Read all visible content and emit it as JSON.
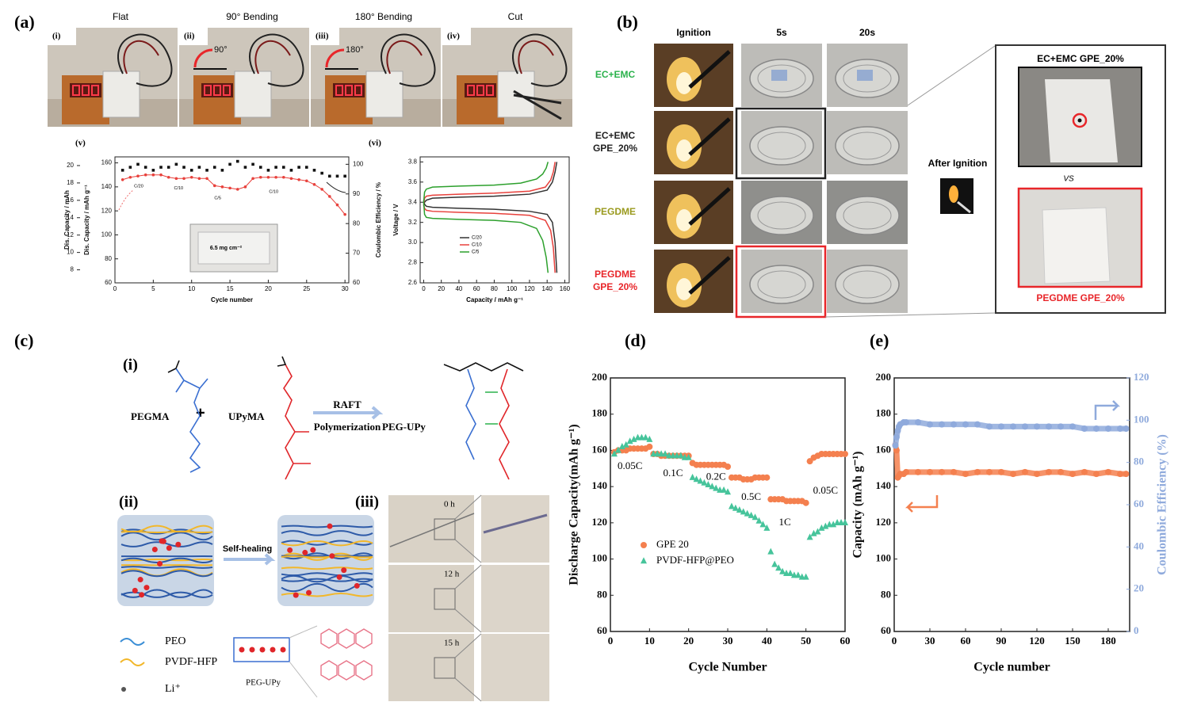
{
  "panel_labels": [
    "(a)",
    "(b)",
    "(c)",
    "(d)",
    "(e)"
  ],
  "panel_a": {
    "photos": [
      {
        "label": "(i)",
        "caption": "Flat"
      },
      {
        "label": "(ii)",
        "caption": "90° Bending",
        "angle": "90°"
      },
      {
        "label": "(iii)",
        "caption": "180° Bending",
        "angle": "180°"
      },
      {
        "label": "(iv)",
        "caption": "Cut"
      }
    ]
  },
  "panel_b": {
    "columns": [
      "Ignition",
      "5s",
      "20s"
    ],
    "rows": [
      {
        "label": [
          "EC+EMC"
        ],
        "color": "#2bb24c"
      },
      {
        "label": [
          "EC+EMC",
          "GPE_20%"
        ],
        "color": "#222222"
      },
      {
        "label": [
          "PEGDME"
        ],
        "color": "#9a9a1e"
      },
      {
        "label": [
          "PEGDME",
          "GPE_20%"
        ],
        "color": "#e8262a"
      }
    ],
    "after_ignition": "After Ignition",
    "compare_top": "EC+EMC GPE_20%",
    "vs": "VS",
    "compare_bottom": "PEGDME GPE_20%"
  },
  "panel_c": {
    "sub_labels": [
      "(i)",
      "(ii)",
      "(iii)"
    ],
    "monomer1": "PEGMA",
    "plus": "+",
    "monomer2": "UPyMA",
    "reaction": [
      "RAFT",
      "Polymerization"
    ],
    "product": "PEG-UPy",
    "self_healing": "Self-healing",
    "times": [
      "0 h",
      "12 h",
      "15 h"
    ],
    "legend": [
      "PEO",
      "PVDF-HFP",
      "Li⁺"
    ],
    "network_label": "PEG-UPy"
  },
  "chart_data": [
    {
      "type": "scatter",
      "label": "(v)",
      "xlabel": "Cycle number",
      "ylabel": "Dis. Capacity / mAh g⁻¹",
      "y2label": "Coulombic Efficiency / %",
      "y3label": "Dis. Capacity / mAh",
      "xlim": [
        0,
        30.5
      ],
      "xticks": [
        0,
        5,
        10,
        15,
        20,
        25,
        30
      ],
      "ylim": [
        60,
        165
      ],
      "yticks": [
        60,
        80,
        100,
        120,
        140,
        160
      ],
      "y2lim": [
        60,
        102.5
      ],
      "y2ticks": [
        60,
        70,
        80,
        90,
        100
      ],
      "y3lim": [
        6.5,
        21
      ],
      "y3ticks": [
        8,
        10,
        12,
        14,
        16,
        18,
        20
      ],
      "annotations": [
        "C/20",
        "C/10",
        "C/5",
        "C/10"
      ],
      "inset_text": "6.5 mg cm⁻²",
      "series": [
        {
          "color": "#e8413c",
          "marker": "circle",
          "line": true,
          "x": [
            1,
            2,
            3,
            4,
            5,
            6,
            7,
            8,
            9,
            10,
            11,
            12,
            13,
            14,
            15,
            16,
            17,
            18,
            19,
            20,
            21,
            22,
            23,
            24,
            25,
            26,
            27,
            28,
            29,
            30
          ],
          "values": [
            146,
            148,
            149,
            150,
            150,
            150,
            148,
            147,
            147,
            148,
            147,
            147,
            141,
            140,
            139,
            138,
            140,
            147,
            148,
            148,
            148,
            148,
            147,
            146,
            145,
            142,
            138,
            132,
            125,
            117
          ]
        },
        {
          "color": "#111111",
          "marker": "square",
          "axis": "y2",
          "x": [
            1,
            2,
            3,
            4,
            5,
            6,
            7,
            8,
            9,
            10,
            11,
            12,
            13,
            14,
            15,
            16,
            17,
            18,
            19,
            20,
            21,
            22,
            23,
            24,
            25,
            26,
            27,
            28,
            29,
            30
          ],
          "values": [
            98,
            99,
            100,
            99,
            98,
            99,
            99,
            100,
            99,
            98,
            99,
            98,
            99,
            98,
            100,
            101,
            99,
            100,
            99,
            98,
            99,
            99,
            98,
            99,
            99,
            98,
            97,
            96,
            96,
            96
          ]
        }
      ]
    },
    {
      "type": "line",
      "label": "(vi)",
      "xlabel": "Capacity / mAh g⁻¹",
      "ylabel": "Voltage / V",
      "xlim": [
        -4,
        165
      ],
      "xticks": [
        0,
        20,
        40,
        60,
        80,
        100,
        120,
        140,
        160
      ],
      "ylim": [
        2.6,
        3.85
      ],
      "yticks": [
        2.6,
        2.8,
        {
          "value": 3,
          "label": "3.0"
        },
        3.2,
        3.4,
        3.6,
        3.8
      ],
      "series": [
        {
          "name": "C/20",
          "color": "#333333",
          "charge": {
            "x": [
              0,
              1,
              3,
              10,
              40,
              80,
              120,
              140,
              146,
              149,
              151
            ],
            "values": [
              3.36,
              3.4,
              3.42,
              3.44,
              3.45,
              3.46,
              3.48,
              3.52,
              3.6,
              3.7,
              3.8
            ]
          },
          "discharge": {
            "x": [
              0,
              1,
              3,
              10,
              40,
              80,
              120,
              140,
              146,
              149,
              151
            ],
            "values": [
              3.42,
              3.38,
              3.36,
              3.35,
              3.34,
              3.33,
              3.31,
              3.28,
              3.2,
              3.0,
              2.7
            ]
          }
        },
        {
          "name": "C/10",
          "color": "#e8413c",
          "charge": {
            "x": [
              0,
              1,
              3,
              10,
              40,
              80,
              120,
              138,
              144,
              147,
              149
            ],
            "values": [
              3.38,
              3.44,
              3.46,
              3.47,
              3.48,
              3.49,
              3.51,
              3.55,
              3.62,
              3.7,
              3.8
            ]
          },
          "discharge": {
            "x": [
              0,
              1,
              3,
              10,
              40,
              80,
              120,
              138,
              144,
              147,
              149
            ],
            "values": [
              3.38,
              3.34,
              3.32,
              3.31,
              3.3,
              3.29,
              3.27,
              3.22,
              3.12,
              2.95,
              2.7
            ]
          }
        },
        {
          "name": "C/5",
          "color": "#2ca02c",
          "charge": {
            "x": [
              0,
              1,
              3,
              10,
              40,
              80,
              110,
              128,
              135,
              139,
              141
            ],
            "values": [
              3.4,
              3.5,
              3.53,
              3.55,
              3.56,
              3.57,
              3.59,
              3.63,
              3.68,
              3.74,
              3.8
            ]
          },
          "discharge": {
            "x": [
              0,
              1,
              3,
              10,
              40,
              80,
              110,
              128,
              135,
              139,
              141
            ],
            "values": [
              3.4,
              3.28,
              3.25,
              3.24,
              3.23,
              3.22,
              3.2,
              3.14,
              3.02,
              2.85,
              2.7
            ]
          }
        }
      ]
    },
    {
      "type": "scatter",
      "xlabel": "Cycle Number",
      "ylabel": "Discharge Capacity(mAh g⁻¹)",
      "xlim": [
        0,
        60
      ],
      "xticks": [
        0,
        10,
        20,
        30,
        40,
        50,
        60
      ],
      "ylim": [
        60,
        200
      ],
      "yticks": [
        60,
        80,
        100,
        120,
        140,
        160,
        180,
        200
      ],
      "annotations": [
        "0.05C",
        "0.1C",
        "0.2C",
        "0.5C",
        "1C",
        "0.05C"
      ],
      "series": [
        {
          "name": "GPE 20",
          "color": "#f4804f",
          "marker": "circle",
          "x": [
            1,
            2,
            3,
            4,
            5,
            6,
            7,
            8,
            9,
            10,
            11,
            12,
            13,
            14,
            15,
            16,
            17,
            18,
            19,
            20,
            21,
            22,
            23,
            24,
            25,
            26,
            27,
            28,
            29,
            30,
            31,
            32,
            33,
            34,
            35,
            36,
            37,
            38,
            39,
            40,
            41,
            42,
            43,
            44,
            45,
            46,
            47,
            48,
            49,
            50,
            51,
            52,
            53,
            54,
            55,
            56,
            57,
            58,
            59,
            60
          ],
          "values": [
            159,
            160,
            160,
            160,
            161,
            161,
            161,
            161,
            161,
            162,
            158,
            158,
            157,
            157,
            157,
            157,
            157,
            157,
            157,
            157,
            153,
            152,
            152,
            152,
            152,
            152,
            152,
            152,
            152,
            151,
            145,
            145,
            145,
            144,
            144,
            144,
            145,
            145,
            145,
            145,
            133,
            133,
            133,
            133,
            132,
            132,
            132,
            132,
            132,
            131,
            154,
            156,
            157,
            158,
            158,
            158,
            158,
            158,
            158,
            158
          ]
        },
        {
          "name": "PVDF-HFP@PEO",
          "color": "#46c49b",
          "marker": "triangle",
          "x": [
            1,
            2,
            3,
            4,
            5,
            6,
            7,
            8,
            9,
            10,
            11,
            12,
            13,
            14,
            15,
            16,
            17,
            18,
            19,
            20,
            21,
            22,
            23,
            24,
            25,
            26,
            27,
            28,
            29,
            30,
            31,
            32,
            33,
            34,
            35,
            36,
            37,
            38,
            39,
            40,
            41,
            42,
            43,
            44,
            45,
            46,
            47,
            48,
            49,
            50,
            51,
            52,
            53,
            54,
            55,
            56,
            57,
            58,
            59,
            60
          ],
          "values": [
            158,
            160,
            162,
            163,
            165,
            166,
            167,
            167,
            167,
            166,
            158,
            158,
            158,
            158,
            157,
            157,
            157,
            157,
            156,
            156,
            145,
            144,
            143,
            142,
            141,
            140,
            139,
            138,
            138,
            137,
            129,
            128,
            127,
            126,
            125,
            124,
            123,
            121,
            119,
            117,
            104,
            97,
            95,
            93,
            92,
            92,
            91,
            91,
            90,
            90,
            112,
            114,
            115,
            117,
            118,
            119,
            119,
            120,
            120,
            120
          ]
        }
      ]
    },
    {
      "type": "scatter",
      "xlabel": "Cycle number",
      "ylabel": "Capacity (mAh g⁻¹)",
      "y2label": "Coulombic Efficiency (%)",
      "xlim": [
        0,
        198
      ],
      "xticks": [
        0,
        30,
        60,
        90,
        120,
        150,
        180
      ],
      "ylim": [
        60,
        200
      ],
      "yticks": [
        60,
        80,
        100,
        120,
        140,
        160,
        180,
        200
      ],
      "y2lim": [
        0,
        120
      ],
      "y2ticks": [
        0,
        20,
        40,
        60,
        80,
        100,
        120
      ],
      "y2color": "#8faadc",
      "series": [
        {
          "color": "#f4804f",
          "marker": "circle",
          "band": true,
          "x": [
            1,
            2,
            3,
            4,
            5,
            8,
            10,
            20,
            30,
            40,
            50,
            60,
            70,
            80,
            90,
            100,
            110,
            120,
            130,
            140,
            150,
            160,
            170,
            180,
            190,
            195
          ],
          "values": [
            163,
            160,
            145,
            146,
            147,
            147,
            148,
            148,
            148,
            148,
            148,
            147,
            148,
            148,
            148,
            147,
            148,
            147,
            148,
            148,
            147,
            148,
            147,
            148,
            147,
            147
          ]
        },
        {
          "color": "#8faadc",
          "marker": "circle",
          "axis": "y2",
          "band": true,
          "x": [
            1,
            2,
            3,
            4,
            5,
            8,
            10,
            20,
            30,
            40,
            50,
            60,
            70,
            80,
            90,
            100,
            110,
            120,
            130,
            140,
            150,
            160,
            170,
            180,
            190,
            195
          ],
          "values": [
            88,
            92,
            95,
            97,
            98,
            99,
            99,
            99,
            98,
            98,
            98,
            98,
            98,
            97,
            97,
            97,
            97,
            97,
            97,
            97,
            97,
            96,
            96,
            96,
            96,
            96
          ]
        }
      ]
    }
  ]
}
